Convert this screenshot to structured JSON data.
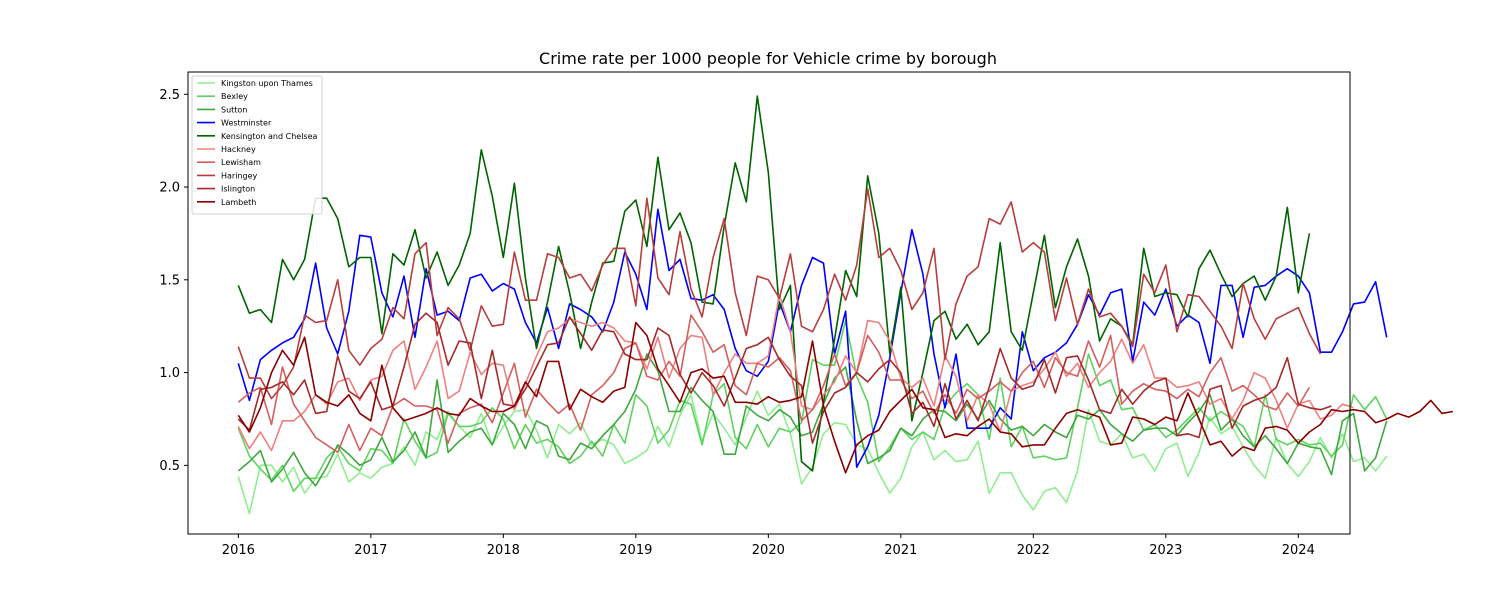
{
  "chart_data": {
    "type": "line",
    "title": "Crime rate per 1000 people for Vehicle crime by borough",
    "xlabel": "",
    "ylabel": "",
    "xlim": [
      2015.62,
      2024.39
    ],
    "ylim": [
      0.13,
      2.62
    ],
    "x_ticks": [
      2016,
      2017,
      2018,
      2019,
      2020,
      2021,
      2022,
      2023,
      2024
    ],
    "x_tick_labels": [
      "2016",
      "2017",
      "2018",
      "2019",
      "2020",
      "2021",
      "2022",
      "2023",
      "2024"
    ],
    "y_ticks": [
      0.5,
      1.0,
      1.5,
      2.0,
      2.5
    ],
    "y_tick_labels": [
      "0.5",
      "1.0",
      "1.5",
      "2.0",
      "2.5"
    ],
    "grid": false,
    "legend_position": "upper-left",
    "x_start": 2016,
    "x_step_months": 1,
    "series": [
      {
        "name": "Kingston upon Thames",
        "color": "#90ee90",
        "values": [
          0.44,
          0.24,
          0.5,
          0.5,
          0.41,
          0.49,
          0.35,
          0.43,
          0.44,
          0.56,
          0.41,
          0.46,
          0.43,
          0.49,
          0.51,
          0.6,
          0.5,
          0.68,
          0.64,
          0.79,
          0.71,
          0.65,
          0.78,
          0.61,
          0.71,
          0.79,
          0.8,
          0.69,
          0.54,
          0.72,
          0.67,
          0.73,
          0.61,
          0.64,
          0.61,
          0.51,
          0.54,
          0.58,
          0.71,
          0.6,
          0.77,
          0.88,
          0.63,
          0.78,
          0.7,
          0.61,
          0.76,
          0.9,
          0.77,
          0.83,
          0.67,
          0.4,
          0.49,
          0.67,
          0.73,
          0.72,
          0.61,
          0.59,
          0.46,
          0.35,
          0.43,
          0.6,
          0.68,
          0.53,
          0.58,
          0.52,
          0.53,
          0.63,
          0.35,
          0.46,
          0.46,
          0.34,
          0.26,
          0.36,
          0.38,
          0.3,
          0.47,
          0.8,
          0.63,
          0.61,
          0.67,
          0.54,
          0.56,
          0.47,
          0.59,
          0.62,
          0.44,
          0.57,
          0.76,
          0.67,
          0.71,
          0.6,
          0.5,
          0.43,
          0.65,
          0.51,
          0.44,
          0.52,
          0.65,
          0.54,
          0.67,
          0.52,
          0.54,
          0.47,
          0.55
        ]
      },
      {
        "name": "Bexley",
        "color": "#5fd35f",
        "values": [
          0.7,
          0.55,
          0.48,
          0.42,
          0.5,
          0.36,
          0.43,
          0.43,
          0.54,
          0.6,
          0.51,
          0.47,
          0.59,
          0.58,
          0.51,
          0.75,
          0.63,
          0.54,
          0.57,
          0.78,
          0.71,
          0.71,
          0.73,
          0.81,
          0.75,
          0.59,
          0.72,
          0.62,
          0.64,
          0.6,
          0.51,
          0.55,
          0.63,
          0.55,
          0.72,
          0.62,
          0.88,
          0.82,
          0.62,
          0.69,
          0.85,
          0.83,
          0.61,
          0.88,
          0.94,
          0.65,
          0.59,
          0.72,
          0.6,
          0.7,
          0.68,
          0.73,
          1.07,
          1.04,
          1.04,
          1.28,
          0.98,
          0.84,
          0.52,
          0.6,
          0.7,
          0.64,
          0.68,
          0.64,
          0.82,
          0.89,
          0.94,
          0.88,
          0.64,
          0.97,
          0.6,
          0.71,
          0.54,
          0.55,
          0.53,
          0.54,
          0.81,
          1.1,
          0.93,
          0.96,
          0.8,
          0.81,
          0.69,
          0.72,
          0.65,
          0.69,
          0.75,
          0.81,
          0.74,
          0.79,
          0.75,
          0.71,
          0.6,
          0.88,
          0.64,
          0.61,
          0.64,
          0.61,
          0.62,
          0.55,
          0.61,
          0.88,
          0.8,
          0.87,
          0.75
        ]
      },
      {
        "name": "Sutton",
        "color": "#3fa83f",
        "values": [
          0.47,
          0.52,
          0.58,
          0.41,
          0.48,
          0.57,
          0.46,
          0.39,
          0.49,
          0.61,
          0.56,
          0.5,
          0.53,
          0.65,
          0.52,
          0.58,
          0.68,
          0.54,
          0.96,
          0.57,
          0.63,
          0.68,
          0.7,
          0.61,
          0.78,
          0.72,
          0.59,
          0.74,
          0.71,
          0.55,
          0.53,
          0.62,
          0.59,
          0.66,
          0.72,
          0.79,
          0.91,
          1.1,
          1.01,
          0.79,
          0.79,
          0.92,
          0.85,
          0.79,
          0.56,
          0.56,
          0.82,
          0.77,
          0.74,
          0.8,
          0.76,
          0.66,
          0.68,
          0.83,
          0.97,
          1.03,
          0.74,
          0.51,
          0.54,
          0.58,
          0.7,
          0.66,
          0.75,
          0.8,
          0.79,
          0.74,
          0.83,
          0.75,
          0.85,
          0.75,
          0.69,
          0.71,
          0.66,
          0.72,
          0.68,
          0.65,
          0.77,
          0.75,
          0.8,
          0.72,
          0.67,
          0.63,
          0.69,
          0.7,
          0.7,
          0.66,
          0.73,
          0.79,
          0.88,
          0.69,
          0.75,
          0.66,
          0.6,
          0.66,
          0.59,
          0.51,
          0.62,
          0.6,
          0.59,
          0.45,
          0.74,
          0.78,
          0.47,
          0.54,
          0.74
        ]
      },
      {
        "name": "Westminster",
        "color": "#0000ff",
        "values": [
          1.05,
          0.85,
          1.07,
          1.12,
          1.16,
          1.19,
          1.29,
          1.59,
          1.24,
          1.1,
          1.33,
          1.74,
          1.73,
          1.43,
          1.3,
          1.52,
          1.19,
          1.56,
          1.31,
          1.33,
          1.28,
          1.51,
          1.53,
          1.44,
          1.48,
          1.45,
          1.27,
          1.16,
          1.35,
          1.13,
          1.37,
          1.34,
          1.3,
          1.22,
          1.38,
          1.65,
          1.53,
          1.34,
          1.88,
          1.55,
          1.61,
          1.4,
          1.39,
          1.42,
          1.34,
          1.13,
          1.01,
          0.98,
          1.06,
          1.38,
          1.22,
          1.47,
          1.62,
          1.59,
          1.1,
          1.33,
          0.49,
          0.6,
          0.77,
          1.08,
          1.43,
          1.77,
          1.53,
          1.1,
          0.81,
          1.1,
          0.7,
          0.7,
          0.7,
          0.81,
          0.75,
          1.22,
          1.01,
          1.08,
          1.11,
          1.16,
          1.26,
          1.42,
          1.31,
          1.43,
          1.45,
          1.06,
          1.38,
          1.31,
          1.45,
          1.25,
          1.31,
          1.27,
          1.05,
          1.47,
          1.47,
          1.19,
          1.46,
          1.47,
          1.52,
          1.56,
          1.52,
          1.43,
          1.11,
          1.11,
          1.22,
          1.37,
          1.38,
          1.49,
          1.19
        ]
      },
      {
        "name": "Kensington and Chelsea",
        "color": "#006400",
        "values": [
          1.47,
          1.32,
          1.34,
          1.27,
          1.61,
          1.5,
          1.61,
          1.94,
          1.94,
          1.83,
          1.57,
          1.62,
          1.62,
          1.21,
          1.64,
          1.58,
          1.77,
          1.51,
          1.65,
          1.47,
          1.58,
          1.75,
          2.2,
          1.95,
          1.62,
          2.02,
          1.51,
          1.13,
          1.38,
          1.68,
          1.43,
          1.13,
          1.38,
          1.59,
          1.6,
          1.87,
          1.93,
          1.68,
          2.16,
          1.77,
          1.86,
          1.7,
          1.38,
          1.37,
          1.79,
          2.13,
          1.92,
          2.49,
          2.08,
          1.34,
          1.47,
          0.52,
          0.47,
          0.84,
          1.18,
          1.55,
          1.41,
          2.06,
          1.75,
          1.1,
          1.46,
          0.74,
          1.0,
          1.28,
          1.33,
          1.18,
          1.26,
          1.15,
          1.22,
          1.7,
          1.22,
          1.12,
          1.43,
          1.74,
          1.35,
          1.57,
          1.72,
          1.52,
          1.17,
          1.29,
          1.25,
          1.15,
          1.67,
          1.41,
          1.43,
          1.42,
          1.3,
          1.56,
          1.66,
          1.53,
          1.41,
          1.48,
          1.52,
          1.39,
          1.52,
          1.89,
          1.43,
          1.75
        ]
      },
      {
        "name": "Hackney",
        "color": "#f08080",
        "values": [
          0.71,
          0.59,
          0.68,
          0.58,
          0.74,
          0.74,
          0.79,
          0.88,
          0.83,
          0.95,
          0.97,
          0.85,
          0.96,
          0.98,
          1.12,
          1.17,
          0.91,
          1.03,
          1.17,
          0.86,
          0.9,
          1.11,
          0.99,
          1.05,
          1.04,
          0.8,
          0.94,
          1.09,
          1.22,
          1.24,
          1.29,
          1.27,
          1.25,
          1.27,
          1.24,
          1.17,
          1.16,
          1.02,
          1.19,
          0.97,
          1.13,
          1.2,
          1.19,
          0.88,
          1.0,
          1.1,
          1.05,
          1.05,
          1.09,
          1.42,
          1.22,
          0.82,
          0.8,
          0.88,
          0.95,
          1.09,
          1.0,
          1.28,
          1.27,
          1.17,
          0.97,
          0.92,
          0.97,
          0.82,
          1.09,
          0.98,
          0.74,
          0.88,
          0.83,
          0.68,
          0.9,
          0.93,
          0.95,
          1.02,
          1.11,
          0.98,
          1.05,
          0.92,
          1.0,
          1.06,
          1.18,
          1.05,
          1.15,
          0.97,
          0.97,
          0.92,
          0.93,
          0.95,
          0.83,
          0.86,
          0.75,
          0.85,
          1.0,
          0.97,
          0.85,
          0.7,
          0.83,
          0.85,
          0.75,
          0.77,
          0.83,
          0.81
        ]
      },
      {
        "name": "Lewisham",
        "color": "#d35f5f",
        "values": [
          0.84,
          0.89,
          0.92,
          0.72,
          1.03,
          0.83,
          0.74,
          0.65,
          0.61,
          0.57,
          0.72,
          0.58,
          0.7,
          0.66,
          0.82,
          0.86,
          0.82,
          0.82,
          0.8,
          0.62,
          0.78,
          0.81,
          0.83,
          0.73,
          0.89,
          1.05,
          0.76,
          0.91,
          0.84,
          0.78,
          0.83,
          0.69,
          0.88,
          0.93,
          1.0,
          1.13,
          1.16,
          0.98,
          0.96,
          1.06,
          0.98,
          1.31,
          1.22,
          1.11,
          1.15,
          0.93,
          0.88,
          1.05,
          1.03,
          1.08,
          1.01,
          0.74,
          0.8,
          0.93,
          1.1,
          0.93,
          1.0,
          1.2,
          1.11,
          0.96,
          0.96,
          0.86,
          0.9,
          0.78,
          0.88,
          0.78,
          0.91,
          0.86,
          0.9,
          0.95,
          0.9,
          1.0,
          1.06,
          0.92,
          1.08,
          1.0,
          0.98,
          1.17,
          1.03,
          1.2,
          0.83,
          0.9,
          0.94,
          0.91,
          0.9,
          0.86,
          0.91,
          0.87,
          1.0,
          1.08,
          0.9,
          0.93,
          0.88,
          0.82,
          0.8,
          0.89,
          0.82,
          0.92
        ]
      },
      {
        "name": "Haringey",
        "color": "#b83e3e",
        "values": [
          1.14,
          0.97,
          0.97,
          0.86,
          0.93,
          1.03,
          1.31,
          1.27,
          1.28,
          1.5,
          1.12,
          1.04,
          1.13,
          1.18,
          1.35,
          1.29,
          1.64,
          1.7,
          1.2,
          1.35,
          1.29,
          1.12,
          1.36,
          1.25,
          1.26,
          1.65,
          1.39,
          1.39,
          1.64,
          1.62,
          1.51,
          1.53,
          1.44,
          1.58,
          1.67,
          1.67,
          1.36,
          1.94,
          1.51,
          1.42,
          1.76,
          1.45,
          1.3,
          1.62,
          1.83,
          1.43,
          1.2,
          1.52,
          1.5,
          1.4,
          1.64,
          1.25,
          1.22,
          1.34,
          1.53,
          1.39,
          1.58,
          1.99,
          1.62,
          1.67,
          1.55,
          1.34,
          1.43,
          1.67,
          1.07,
          1.37,
          1.52,
          1.57,
          1.83,
          1.8,
          1.92,
          1.65,
          1.7,
          1.65,
          1.28,
          1.51,
          1.26,
          1.45,
          1.3,
          1.32,
          1.25,
          1.14,
          1.53,
          1.43,
          1.58,
          1.22,
          1.42,
          1.41,
          1.33,
          1.25,
          1.13,
          1.48,
          1.29,
          1.18,
          1.29,
          1.32,
          1.35,
          1.21,
          1.1
        ]
      },
      {
        "name": "Islington",
        "color": "#a52a2a",
        "values": [
          0.75,
          0.69,
          0.91,
          0.92,
          0.95,
          0.88,
          0.96,
          0.78,
          0.79,
          1.09,
          0.9,
          0.86,
          0.95,
          0.8,
          0.82,
          1.03,
          1.26,
          1.32,
          1.27,
          1.04,
          1.17,
          1.16,
          0.86,
          1.12,
          0.83,
          0.82,
          0.91,
          1.03,
          1.15,
          1.16,
          1.3,
          1.21,
          1.12,
          1.23,
          1.22,
          1.1,
          1.07,
          1.07,
          1.24,
          1.2,
          0.99,
          0.89,
          1.0,
          0.93,
          0.82,
          0.97,
          1.13,
          1.15,
          1.19,
          1.07,
          0.98,
          0.93,
          0.62,
          0.79,
          0.89,
          0.92,
          1.0,
          0.95,
          1.02,
          1.07,
          1.0,
          0.78,
          0.84,
          0.71,
          0.94,
          0.75,
          0.85,
          0.74,
          0.92,
          1.13,
          0.97,
          0.91,
          0.93,
          1.07,
          0.89,
          1.08,
          1.09,
          0.96,
          0.8,
          0.78,
          0.91,
          0.83,
          0.9,
          0.95,
          0.97,
          0.66,
          0.67,
          0.65,
          0.91,
          0.93,
          0.7,
          0.82,
          0.85,
          0.87,
          0.92,
          1.08,
          0.83,
          0.81,
          0.8,
          0.82
        ]
      },
      {
        "name": "Lambeth",
        "color": "#8b0000",
        "values": [
          0.77,
          0.68,
          0.81,
          1.0,
          1.12,
          1.04,
          1.19,
          0.88,
          0.84,
          0.82,
          0.88,
          0.78,
          0.74,
          1.04,
          0.81,
          0.74,
          0.76,
          0.78,
          0.81,
          0.78,
          0.77,
          0.86,
          0.82,
          0.79,
          0.79,
          0.82,
          0.95,
          0.87,
          1.06,
          1.06,
          0.8,
          0.91,
          0.87,
          0.84,
          0.9,
          0.92,
          1.27,
          1.2,
          1.02,
          0.93,
          0.84,
          1.0,
          1.02,
          0.97,
          0.98,
          0.84,
          0.84,
          0.83,
          0.87,
          0.84,
          0.85,
          0.87,
          1.17,
          0.82,
          0.63,
          0.46,
          0.61,
          0.66,
          0.69,
          0.79,
          0.85,
          0.91,
          0.81,
          0.8,
          0.65,
          0.67,
          0.66,
          0.71,
          0.75,
          0.68,
          0.67,
          0.6,
          0.61,
          0.61,
          0.7,
          0.78,
          0.8,
          0.78,
          0.76,
          0.61,
          0.62,
          0.76,
          0.75,
          0.72,
          0.76,
          0.74,
          0.89,
          0.75,
          0.61,
          0.63,
          0.55,
          0.6,
          0.58,
          0.7,
          0.71,
          0.69,
          0.62,
          0.68,
          0.72,
          0.8,
          0.79,
          0.8,
          0.79,
          0.73,
          0.75,
          0.78,
          0.76,
          0.79,
          0.85,
          0.78,
          0.79
        ]
      }
    ]
  }
}
